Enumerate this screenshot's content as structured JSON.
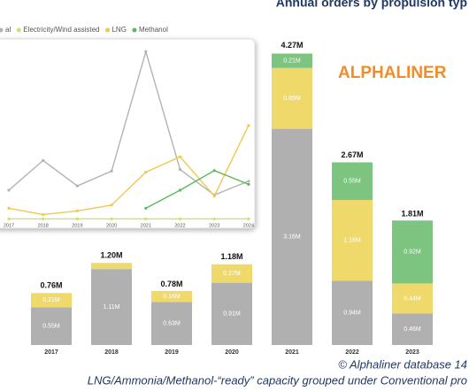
{
  "title": "Annual orders by propulsion typ",
  "logo": "ALPHALINER",
  "footer": [
    "© Alphaliner database 14",
    "LNG/Ammonia/Methanol-“ready” capacity grouped under Conventional pro"
  ],
  "chart_data": [
    {
      "type": "line",
      "categories": [
        "2017",
        "2018",
        "2019",
        "2020",
        "2021",
        "2022",
        "2023",
        "2024"
      ],
      "ylim": [
        0,
        3.3
      ],
      "series": [
        {
          "name": "al",
          "color": "#b3b3b3",
          "values": [
            0.55,
            1.11,
            0.63,
            0.91,
            3.16,
            0.94,
            0.46,
            0.72
          ]
        },
        {
          "name": "Electricity/Wind assisted",
          "color": "#c9e46c",
          "values": [
            0.01,
            0.01,
            0.01,
            0.01,
            0.01,
            0.01,
            0.01,
            0.01
          ]
        },
        {
          "name": "LNG",
          "color": "#f0c850",
          "values": [
            0.21,
            0.09,
            0.16,
            0.27,
            0.89,
            1.18,
            0.44,
            1.77
          ]
        },
        {
          "name": "Methanol",
          "color": "#5cb85c",
          "values": [
            null,
            null,
            null,
            null,
            0.21,
            0.55,
            0.92,
            0.66
          ]
        }
      ]
    },
    {
      "type": "stacked-bar",
      "categories": [
        "2017",
        "2018",
        "2019",
        "2020",
        "2021",
        "2022",
        "2023"
      ],
      "ylim": [
        0,
        4.5
      ],
      "series": [
        {
          "color": "#b0b0b0",
          "values": [
            0.55,
            1.11,
            0.63,
            0.91,
            3.16,
            0.94,
            0.46
          ],
          "value_labels": [
            "0.55M",
            "1.11M",
            "0.63M",
            "0.91M",
            "3.16M",
            "0.94M",
            "0.46M"
          ]
        },
        {
          "color": "#efd96b",
          "values": [
            0.21,
            0.09,
            0.16,
            0.27,
            0.89,
            1.18,
            0.44
          ],
          "value_labels": [
            "0.21M",
            null,
            "0.16M",
            "0.27M",
            "0.89M",
            "1.18M",
            "0.44M"
          ]
        },
        {
          "color": "#7cc47f",
          "values": [
            0,
            0,
            0,
            0,
            0.21,
            0.55,
            0.92
          ],
          "value_labels": [
            null,
            null,
            null,
            null,
            "0.21M",
            "0.55M",
            "0.92M"
          ]
        }
      ],
      "totals": {
        "values": [
          0.76,
          1.2,
          0.78,
          1.18,
          4.27,
          2.67,
          1.81
        ],
        "value_labels": [
          "0.76M",
          "1.20M",
          "0.78M",
          "1.18M",
          "4.27M",
          "2.67M",
          "1.81M"
        ]
      }
    }
  ]
}
